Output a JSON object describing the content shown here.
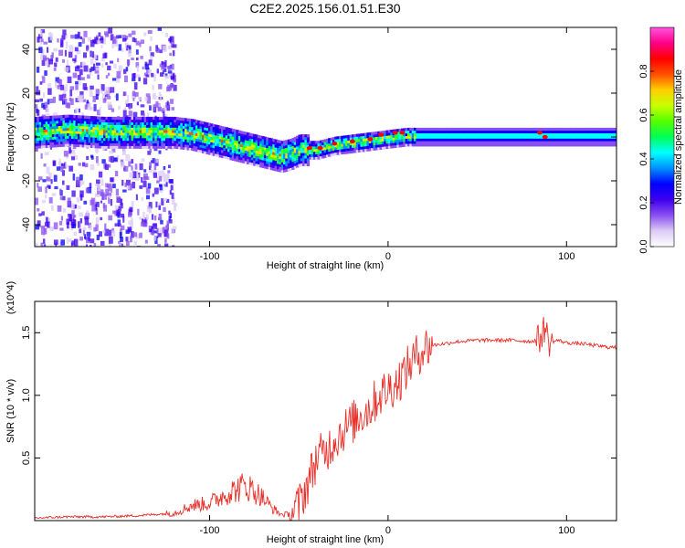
{
  "title": "C2E2.2025.156.01.51.E30",
  "chart_data": [
    {
      "type": "heatmap",
      "xlabel": "Height of straight line (km)",
      "ylabel": "Frequency (Hz)",
      "xlim": [
        -198,
        128
      ],
      "ylim": [
        -50,
        50
      ],
      "xticks": [
        -100,
        0,
        100
      ],
      "yticks": [
        -40,
        -20,
        0,
        20,
        40
      ],
      "colorbar": {
        "label": "Normalized spectral amplitude",
        "range": [
          0.0,
          1.0
        ],
        "ticks": [
          0.0,
          0.2,
          0.4,
          0.6,
          0.8
        ],
        "tick_labels": [
          "0.0",
          "0.2",
          "0.4",
          "0.6",
          "0.8"
        ],
        "colors": [
          "#ffffff",
          "#dcccf5",
          "#8a4ff0",
          "#3f00ee",
          "#0000ff",
          "#0090ff",
          "#00ffff",
          "#00ff55",
          "#55ff00",
          "#c8ff00",
          "#ffd000",
          "#ff5000",
          "#ff0000",
          "#ff0088",
          "#ff55dd"
        ]
      },
      "ridge": {
        "x": [
          -198,
          -180,
          -160,
          -140,
          -120,
          -110,
          -100,
          -90,
          -80,
          -70,
          -60,
          -55,
          -50,
          -45,
          -40,
          -30,
          -20,
          -10,
          0,
          10,
          20,
          40,
          60,
          80,
          100,
          128
        ],
        "freq": [
          3,
          4,
          3,
          3,
          3,
          2,
          0,
          -2,
          -4,
          -6,
          -8,
          -7,
          -5,
          -5,
          -5,
          -3,
          -2,
          -1,
          0,
          1,
          1,
          1,
          1,
          1,
          1,
          1
        ]
      }
    },
    {
      "type": "line",
      "xlabel": "Height of straight line (km)",
      "ylabel": "SNR (10 * v/v)",
      "y_multiplier": "(x10^4)",
      "xlim": [
        -198,
        128
      ],
      "ylim": [
        0,
        1.75
      ],
      "xticks": [
        -100,
        0,
        100
      ],
      "yticks": [
        0.5,
        1.0,
        1.5
      ],
      "ytick_labels": [
        "0.5",
        "1.0",
        "1.5"
      ],
      "series_color": "#e8302a",
      "series": [
        {
          "name": "SNR",
          "x": [
            -198,
            -180,
            -160,
            -140,
            -130,
            -120,
            -110,
            -100,
            -95,
            -90,
            -85,
            -80,
            -75,
            -70,
            -65,
            -60,
            -55,
            -50,
            -45,
            -40,
            -35,
            -30,
            -25,
            -20,
            -15,
            -10,
            -5,
            0,
            5,
            10,
            15,
            20,
            25,
            30,
            40,
            50,
            60,
            70,
            80,
            85,
            88,
            90,
            95,
            100,
            110,
            120,
            128
          ],
          "y": [
            0.02,
            0.03,
            0.03,
            0.04,
            0.05,
            0.06,
            0.12,
            0.14,
            0.18,
            0.22,
            0.25,
            0.28,
            0.24,
            0.18,
            0.1,
            0.05,
            0.05,
            0.12,
            0.3,
            0.5,
            0.55,
            0.65,
            0.72,
            0.78,
            0.85,
            0.9,
            1.0,
            1.05,
            1.1,
            1.2,
            1.3,
            1.38,
            1.4,
            1.41,
            1.43,
            1.44,
            1.44,
            1.44,
            1.43,
            1.45,
            1.55,
            1.42,
            1.44,
            1.42,
            1.41,
            1.39,
            1.38
          ]
        }
      ]
    }
  ]
}
